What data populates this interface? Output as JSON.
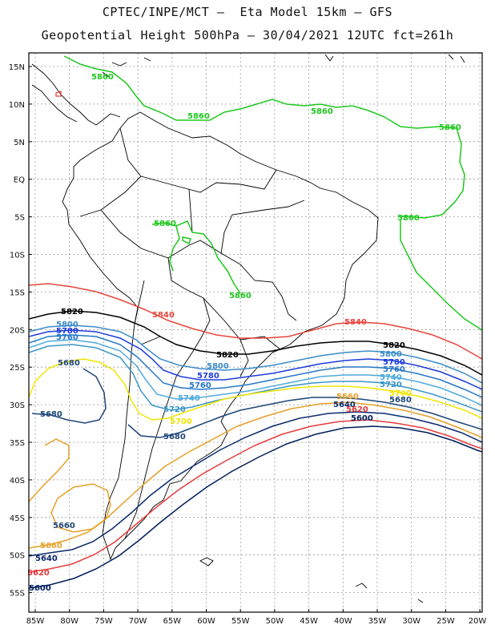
{
  "title": {
    "line1": "CPTEC/INPE/MCT –  Eta Model 15km – GFS",
    "line2": "Geopotential Height 500hPa – 30/04/2021 12UTC fct=261h"
  },
  "axes": {
    "lat_labels": [
      "15N",
      "10N",
      "5N",
      "EQ",
      "5S",
      "10S",
      "15S",
      "20S",
      "25S",
      "30S",
      "35S",
      "40S",
      "45S",
      "50S",
      "55S"
    ],
    "lon_labels": [
      "85W",
      "80W",
      "75W",
      "70W",
      "65W",
      "60W",
      "55W",
      "50W",
      "45W",
      "40W",
      "35W",
      "30W",
      "25W",
      "20W"
    ]
  },
  "colors": {
    "c5860": "#1ec81e",
    "c5840": "#e8463c",
    "c5820": "#000000",
    "c5800": "#3c8cc8",
    "c5780": "#1e3cdc",
    "c5760": "#2878c8",
    "c5740": "#50aadc",
    "c5720": "#3c96c8",
    "c5700": "#f0e600",
    "c5680": "#1e4678",
    "c5660": "#e6a028",
    "c5640": "#0a2a6e",
    "c5620": "#e63c3c",
    "c5600": "#001e5a"
  },
  "contour_labels": {
    "l5860": "5860",
    "l5840": "5840",
    "l5820": "5820",
    "l5800": "5800",
    "l5780": "5780",
    "l5760": "5760",
    "l5740": "5740",
    "l5720": "5720",
    "l5700": "5700",
    "l5680": "5680",
    "l5660": "5660",
    "l5640": "5640",
    "l5620": "5620",
    "l5600": "5600"
  }
}
